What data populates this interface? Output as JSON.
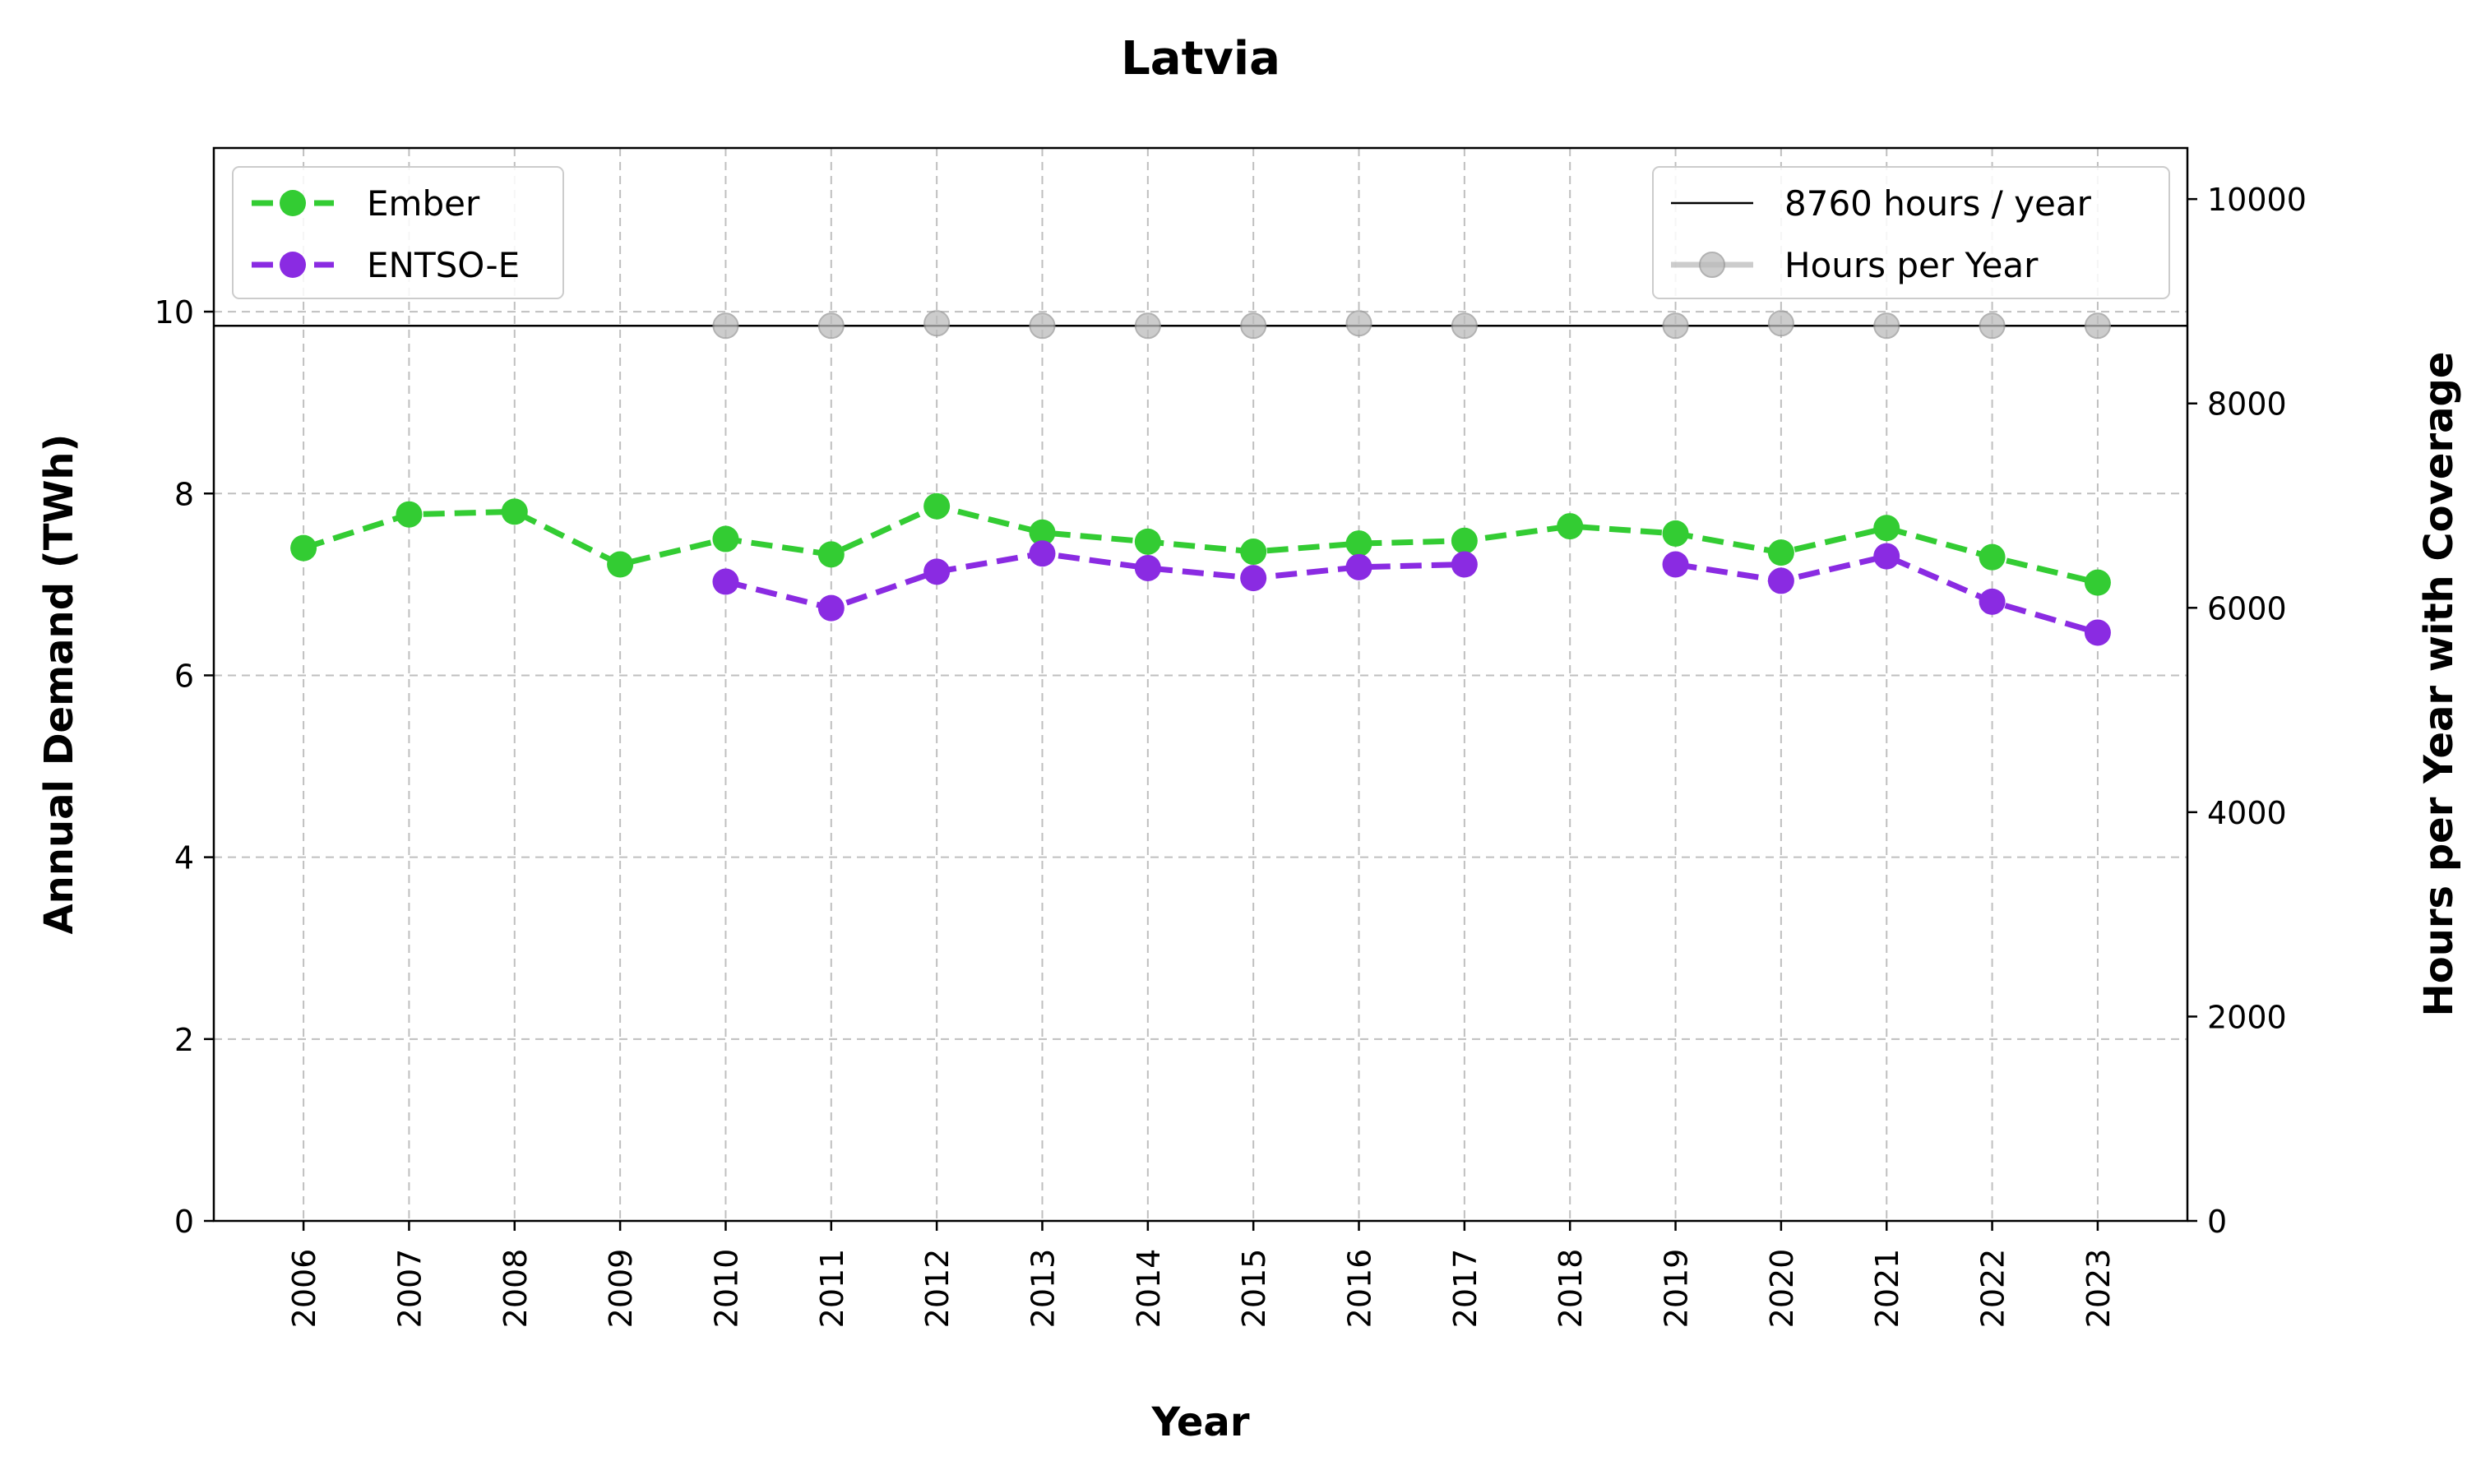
{
  "chart_data": {
    "type": "line",
    "title": "Latvia",
    "xlabel": "Year",
    "ylabel": "Annual Demand (TWh)",
    "y2label": "Hours per Year with Coverage",
    "x": [
      2006,
      2007,
      2008,
      2009,
      2010,
      2011,
      2012,
      2013,
      2014,
      2015,
      2016,
      2017,
      2018,
      2019,
      2020,
      2021,
      2022,
      2023
    ],
    "ylim": [
      0,
      11.8
    ],
    "y2lim": [
      0,
      10500
    ],
    "yticks": [
      0,
      2,
      4,
      6,
      8,
      10
    ],
    "y2ticks": [
      0,
      2000,
      4000,
      6000,
      8000,
      10000
    ],
    "grid": true,
    "series": [
      {
        "name": "Ember",
        "axis": "left",
        "color": "#33cc33",
        "style": "dashed",
        "values": [
          7.4,
          7.77,
          7.8,
          7.22,
          7.5,
          7.33,
          7.86,
          7.57,
          7.47,
          7.36,
          7.45,
          7.48,
          7.64,
          7.56,
          7.35,
          7.62,
          7.3,
          7.02
        ]
      },
      {
        "name": "ENTSO-E",
        "axis": "left",
        "color": "#8a2be2",
        "style": "dashed",
        "values": [
          null,
          null,
          null,
          null,
          7.03,
          6.74,
          7.14,
          7.34,
          7.18,
          7.07,
          7.19,
          7.22,
          null,
          7.22,
          7.04,
          7.31,
          6.81,
          6.47
        ]
      },
      {
        "name": "Hours per Year",
        "axis": "right",
        "color": "#bbbbbb",
        "style": "markers",
        "values": [
          null,
          null,
          null,
          null,
          8760,
          8760,
          8784,
          8760,
          8760,
          8760,
          8784,
          8760,
          null,
          8760,
          8784,
          8760,
          8760,
          8760
        ]
      }
    ],
    "reference_line": {
      "label": "8760 hours / year",
      "axis": "right",
      "value": 8760,
      "color": "#000000"
    },
    "legend_left": {
      "placement": "upper-left",
      "entries": [
        "Ember",
        "ENTSO-E"
      ]
    },
    "legend_right": {
      "placement": "upper-right",
      "entries": [
        "8760 hours / year",
        "Hours per Year"
      ]
    }
  }
}
